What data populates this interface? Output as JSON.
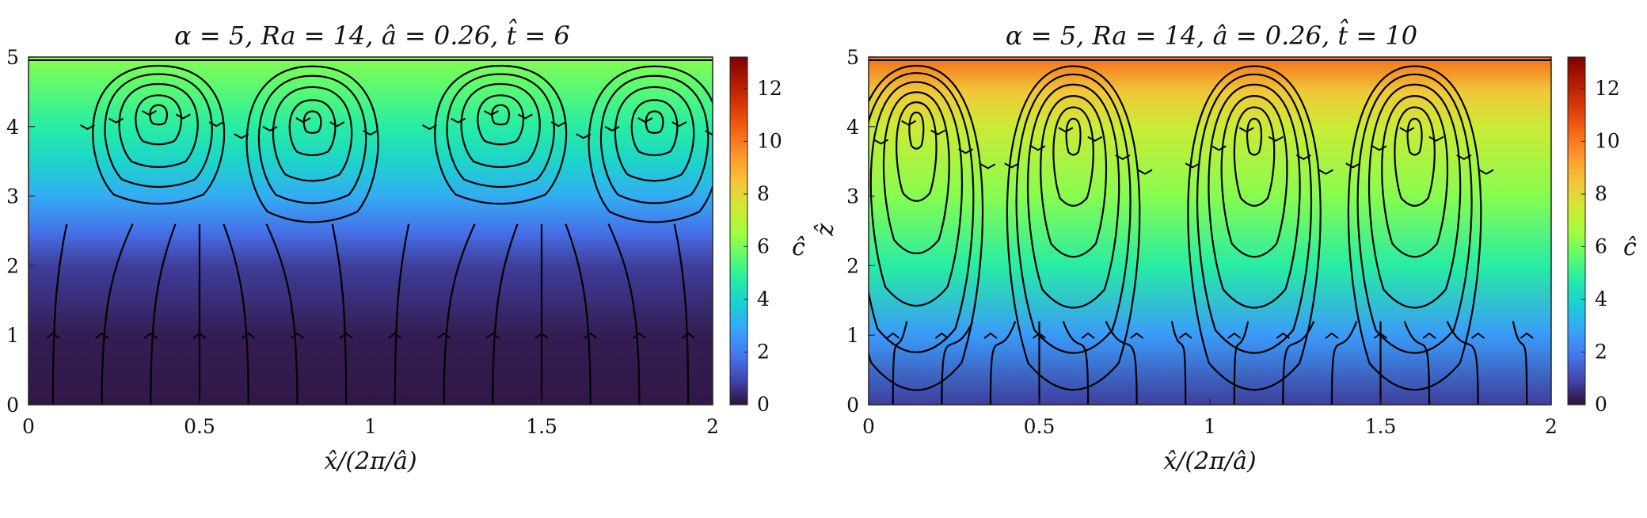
{
  "chart_data": [
    {
      "type": "heatmap",
      "title": "α = 5, Ra = 14, â = 0.26, t̂ = 6",
      "xlabel": "x̂/(2π/â)",
      "ylabel": "",
      "xlim": [
        0,
        2
      ],
      "ylim": [
        0,
        5
      ],
      "xticks": [
        "0",
        "0.5",
        "1",
        "1.5",
        "2"
      ],
      "yticks": [
        "0",
        "1",
        "2",
        "3",
        "4",
        "5"
      ],
      "colorbar": {
        "label": "ĉ",
        "range": [
          0,
          13.2
        ],
        "ticks": [
          "0",
          "2",
          "4",
          "6",
          "8",
          "10",
          "12"
        ],
        "colormap": "turbo"
      },
      "field": {
        "description_values": "concentration field: ~0 for z below 2, rising to ~6 at z = 5",
        "z_profile": [
          [
            0,
            0.1
          ],
          [
            1,
            0.2
          ],
          [
            2,
            0.8
          ],
          [
            2.5,
            1.8
          ],
          [
            3,
            3.0
          ],
          [
            3.5,
            4.0
          ],
          [
            4,
            4.8
          ],
          [
            4.5,
            5.5
          ],
          [
            5,
            6.2
          ]
        ]
      },
      "cells": [
        {
          "x_center": 0.38,
          "z_center": 4.2
        },
        {
          "x_center": 0.83,
          "z_center": 4.1
        },
        {
          "x_center": 1.38,
          "z_center": 4.2
        },
        {
          "x_center": 1.83,
          "z_center": 4.1
        }
      ],
      "grid": false
    },
    {
      "type": "heatmap",
      "title": "α = 5, Ra = 14, â = 0.26, t̂ = 10",
      "xlabel": "x̂/(2π/â)",
      "ylabel": "ẑ",
      "xlim": [
        0,
        2
      ],
      "ylim": [
        0,
        5
      ],
      "xticks": [
        "0",
        "0.5",
        "1",
        "1.5",
        "2"
      ],
      "yticks": [
        "0",
        "1",
        "2",
        "3",
        "4",
        "5"
      ],
      "colorbar": {
        "label": "ĉ",
        "range": [
          0,
          13.2
        ],
        "ticks": [
          "0",
          "2",
          "4",
          "6",
          "8",
          "10",
          "12"
        ],
        "colormap": "turbo"
      },
      "field": {
        "description_values": "concentration field: ~1 near z = 0, rising to ~10 at z = 5",
        "z_profile": [
          [
            0,
            0.8
          ],
          [
            1,
            2.6
          ],
          [
            2,
            4.8
          ],
          [
            3,
            6.2
          ],
          [
            4,
            7.4
          ],
          [
            4.5,
            8.4
          ],
          [
            5,
            10.2
          ]
        ]
      },
      "cells": [
        {
          "x_center": 0.14,
          "z_center": 4.1
        },
        {
          "x_center": 0.6,
          "z_center": 4.0
        },
        {
          "x_center": 1.13,
          "z_center": 4.0
        },
        {
          "x_center": 1.6,
          "z_center": 4.0
        }
      ],
      "grid": false
    }
  ]
}
